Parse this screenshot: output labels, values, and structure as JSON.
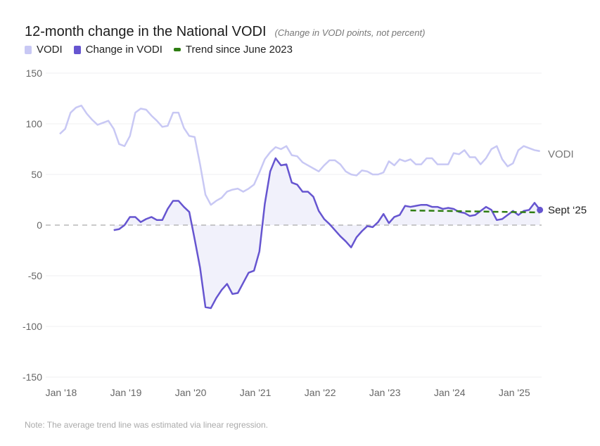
{
  "chart_data": {
    "type": "line",
    "title": "12-month change in the National VODI",
    "subtitle": "(Change in VODI points, not percent)",
    "note": "Note: The average trend line was estimated via linear regression.",
    "ylim": [
      -150,
      150
    ],
    "yticks": [
      150,
      100,
      50,
      0,
      -50,
      -100,
      -150
    ],
    "ytick_labels": [
      "150",
      "100",
      "50",
      "0",
      "-50",
      "-100",
      "-150"
    ],
    "xlim": [
      "2018-01",
      "2025-06"
    ],
    "xticks": [
      "2018-01",
      "2019-01",
      "2020-01",
      "2021-01",
      "2022-01",
      "2023-01",
      "2024-01",
      "2025-01"
    ],
    "xtick_labels": [
      "Jan '18",
      "Jan '19",
      "Jan '20",
      "Jan '21",
      "Jan '22",
      "Jan '23",
      "Jan '24",
      "Jan '25"
    ],
    "grid": true,
    "legend_placement": "top-left",
    "colors": {
      "vodi": "#c8c8f4",
      "change": "#6655d0",
      "trend": "#2e7d12",
      "fill": "#f1f1fb",
      "zero": "#aaaaaa"
    },
    "series": [
      {
        "name": "VODI",
        "end_label": "VODI",
        "start": "2018-01",
        "values": [
          90,
          95,
          111,
          116,
          118,
          110,
          104,
          99,
          101,
          103,
          95,
          80,
          78,
          88,
          111,
          115,
          114,
          108,
          103,
          97,
          98,
          111,
          111,
          96,
          88,
          87,
          60,
          30,
          20,
          24,
          27,
          33,
          35,
          36,
          33,
          36,
          40,
          52,
          65,
          72,
          77,
          75,
          78,
          69,
          68,
          62,
          59,
          56,
          53,
          59,
          64,
          64,
          60,
          53,
          50,
          49,
          54,
          53,
          50,
          50,
          52,
          63,
          59,
          65,
          63,
          65,
          60,
          60,
          66,
          66,
          60,
          60,
          60,
          71,
          70,
          74,
          67,
          67,
          60,
          66,
          75,
          78,
          65,
          58,
          61,
          74,
          78,
          76,
          74,
          73
        ]
      },
      {
        "name": "Change in VODI",
        "end_label": "Sept ‘25",
        "start": "2018-11",
        "values": [
          -5,
          -4,
          0,
          8,
          8,
          3,
          6,
          8,
          5,
          5,
          16,
          24,
          24,
          18,
          13,
          -14,
          -42,
          -81,
          -82,
          -72,
          -64,
          -58,
          -68,
          -67,
          -57,
          -47,
          -45,
          -26,
          21,
          53,
          66,
          59,
          60,
          42,
          40,
          33,
          33,
          28,
          14,
          6,
          1,
          -5,
          -11,
          -16,
          -22,
          -12,
          -6,
          -1,
          -2,
          3,
          11,
          2,
          8,
          10,
          19,
          18,
          19,
          20,
          20,
          18,
          18,
          16,
          17,
          16,
          13,
          12,
          9,
          10,
          14,
          18,
          15,
          5,
          6,
          10,
          14,
          10,
          14,
          15,
          22,
          15
        ]
      },
      {
        "name": "Trend since June 2023",
        "start": "2023-06",
        "end": "2025-06",
        "values": [
          14.5,
          12.5
        ]
      }
    ]
  }
}
